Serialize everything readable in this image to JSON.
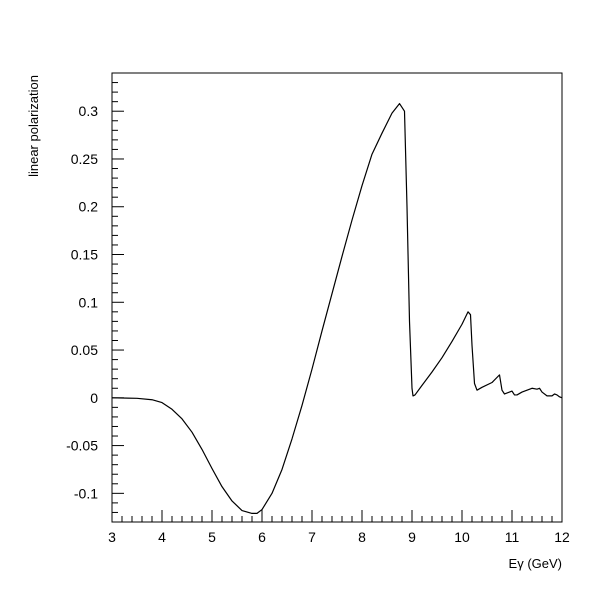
{
  "chart_data": {
    "type": "line",
    "title": "",
    "xlabel": "Eγ (GeV)",
    "ylabel": "linear polarization",
    "xlim": [
      3,
      12
    ],
    "ylim": [
      -0.13,
      0.34
    ],
    "grid": false,
    "legend": "none",
    "x_ticks": [
      3,
      4,
      5,
      6,
      7,
      8,
      9,
      10,
      11,
      12
    ],
    "x_tick_labels": [
      "3",
      "4",
      "5",
      "6",
      "7",
      "8",
      "9",
      "10",
      "11",
      "12"
    ],
    "y_ticks": [
      -0.1,
      -0.05,
      0,
      0.05,
      0.1,
      0.15,
      0.2,
      0.25,
      0.3
    ],
    "y_tick_labels": [
      "-0.1",
      "-0.05",
      "0",
      "0.05",
      "0.1",
      "0.15",
      "0.2",
      "0.25",
      "0.3"
    ],
    "series": [
      {
        "color": "#000000",
        "x": [
          3.0,
          3.5,
          3.8,
          4.0,
          4.2,
          4.4,
          4.6,
          4.8,
          5.0,
          5.2,
          5.4,
          5.6,
          5.8,
          5.9,
          6.0,
          6.2,
          6.4,
          6.6,
          6.8,
          7.0,
          7.2,
          7.4,
          7.6,
          7.8,
          8.0,
          8.2,
          8.4,
          8.6,
          8.75,
          8.85,
          8.9,
          8.95,
          9.0,
          9.02,
          9.06,
          9.2,
          9.4,
          9.6,
          9.8,
          10.0,
          10.12,
          10.17,
          10.2,
          10.25,
          10.3,
          10.4,
          10.6,
          10.75,
          10.8,
          10.85,
          10.95,
          11.0,
          11.05,
          11.1,
          11.2,
          11.3,
          11.4,
          11.5,
          11.55,
          11.6,
          11.7,
          11.8,
          11.85,
          11.9,
          11.95,
          12.0
        ],
        "y": [
          0.0,
          -0.0005,
          -0.002,
          -0.005,
          -0.012,
          -0.022,
          -0.036,
          -0.054,
          -0.074,
          -0.093,
          -0.108,
          -0.118,
          -0.121,
          -0.121,
          -0.117,
          -0.1,
          -0.075,
          -0.043,
          -0.008,
          0.03,
          0.07,
          0.109,
          0.148,
          0.186,
          0.222,
          0.255,
          0.277,
          0.298,
          0.308,
          0.3,
          0.2,
          0.08,
          0.01,
          0.002,
          0.003,
          0.013,
          0.027,
          0.042,
          0.059,
          0.077,
          0.09,
          0.087,
          0.055,
          0.015,
          0.008,
          0.011,
          0.016,
          0.024,
          0.008,
          0.004,
          0.006,
          0.007,
          0.003,
          0.003,
          0.006,
          0.008,
          0.01,
          0.009,
          0.01,
          0.006,
          0.002,
          0.002,
          0.004,
          0.003,
          0.001,
          0.0
        ]
      }
    ]
  }
}
